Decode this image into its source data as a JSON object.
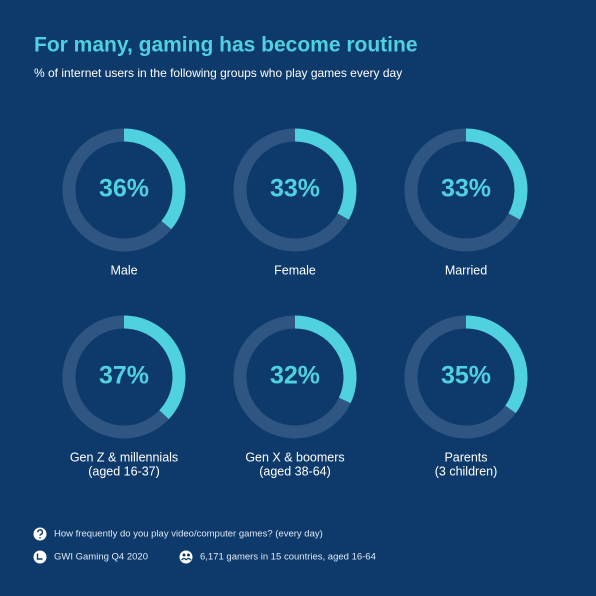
{
  "title": "For many, gaming has become routine",
  "subtitle": "% of internet users in the following groups who play games every day",
  "chart_data": [
    {
      "type": "donut",
      "label": [
        "Male"
      ],
      "values": [
        36
      ],
      "value_labels": [
        "36%"
      ],
      "ylim": [
        0,
        100
      ],
      "color": "#4fd1e0",
      "track_color": "#2f5682"
    },
    {
      "type": "donut",
      "label": [
        "Female"
      ],
      "values": [
        33
      ],
      "value_labels": [
        "33%"
      ],
      "ylim": [
        0,
        100
      ],
      "color": "#4fd1e0",
      "track_color": "#2f5682"
    },
    {
      "type": "donut",
      "label": [
        "Married"
      ],
      "values": [
        33
      ],
      "value_labels": [
        "33%"
      ],
      "ylim": [
        0,
        100
      ],
      "color": "#4fd1e0",
      "track_color": "#2f5682"
    },
    {
      "type": "donut",
      "label": [
        "Gen Z & millennials",
        "(aged 16-37)"
      ],
      "values": [
        37
      ],
      "value_labels": [
        "37%"
      ],
      "ylim": [
        0,
        100
      ],
      "color": "#4fd1e0",
      "track_color": "#2f5682"
    },
    {
      "type": "donut",
      "label": [
        "Gen X & boomers",
        "(aged 38-64)"
      ],
      "values": [
        32
      ],
      "value_labels": [
        "32%"
      ],
      "ylim": [
        0,
        100
      ],
      "color": "#4fd1e0",
      "track_color": "#2f5682"
    },
    {
      "type": "donut",
      "label": [
        "Parents",
        "(3 children)"
      ],
      "values": [
        35
      ],
      "value_labels": [
        "35%"
      ],
      "ylim": [
        0,
        100
      ],
      "color": "#4fd1e0",
      "track_color": "#2f5682"
    }
  ],
  "footer": {
    "question": "How frequently do you play video/computer games? (every day)",
    "source": "GWI Gaming Q4 2020",
    "sample": "6,171 gamers in 15 countries, aged 16-64"
  }
}
